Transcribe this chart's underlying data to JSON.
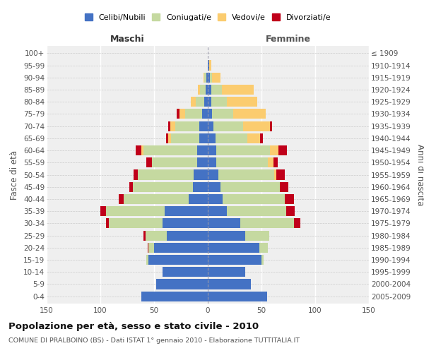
{
  "age_groups": [
    "0-4",
    "5-9",
    "10-14",
    "15-19",
    "20-24",
    "25-29",
    "30-34",
    "35-39",
    "40-44",
    "45-49",
    "50-54",
    "55-59",
    "60-64",
    "65-69",
    "70-74",
    "75-79",
    "80-84",
    "85-89",
    "90-94",
    "95-99",
    "100+"
  ],
  "birth_years": [
    "2005-2009",
    "2000-2004",
    "1995-1999",
    "1990-1994",
    "1985-1989",
    "1980-1984",
    "1975-1979",
    "1970-1974",
    "1965-1969",
    "1960-1964",
    "1955-1959",
    "1950-1954",
    "1945-1949",
    "1940-1944",
    "1935-1939",
    "1930-1934",
    "1925-1929",
    "1920-1924",
    "1915-1919",
    "1910-1914",
    "≤ 1909"
  ],
  "maschi": {
    "celibi": [
      62,
      48,
      42,
      55,
      50,
      38,
      42,
      40,
      18,
      14,
      13,
      10,
      10,
      8,
      8,
      5,
      3,
      2,
      1,
      0,
      0
    ],
    "coniugati": [
      0,
      0,
      0,
      2,
      5,
      20,
      50,
      55,
      60,
      56,
      52,
      42,
      50,
      26,
      22,
      16,
      8,
      5,
      2,
      0,
      0
    ],
    "vedovi": [
      0,
      0,
      0,
      0,
      0,
      0,
      0,
      0,
      0,
      0,
      0,
      0,
      2,
      3,
      5,
      5,
      5,
      2,
      1,
      0,
      0
    ],
    "divorziati": [
      0,
      0,
      0,
      0,
      1,
      2,
      3,
      5,
      5,
      3,
      4,
      5,
      5,
      2,
      2,
      3,
      0,
      0,
      0,
      0,
      0
    ]
  },
  "femmine": {
    "nubili": [
      55,
      40,
      35,
      50,
      48,
      35,
      30,
      18,
      14,
      12,
      10,
      8,
      8,
      7,
      5,
      4,
      3,
      3,
      2,
      1,
      0
    ],
    "coniugate": [
      0,
      0,
      0,
      2,
      8,
      22,
      50,
      55,
      58,
      55,
      52,
      48,
      50,
      30,
      28,
      20,
      15,
      10,
      2,
      0,
      0
    ],
    "vedove": [
      0,
      0,
      0,
      0,
      0,
      0,
      0,
      0,
      0,
      0,
      2,
      5,
      8,
      12,
      25,
      30,
      28,
      30,
      8,
      2,
      0
    ],
    "divorziate": [
      0,
      0,
      0,
      0,
      0,
      0,
      6,
      8,
      8,
      8,
      8,
      4,
      8,
      2,
      2,
      0,
      0,
      0,
      0,
      0,
      0
    ]
  },
  "colors": {
    "celibi": "#4472C4",
    "coniugati": "#C5D9A0",
    "vedovi": "#FBCC6F",
    "divorziati": "#C0001A"
  },
  "xlim": 150,
  "title": "Popolazione per età, sesso e stato civile - 2010",
  "subtitle": "COMUNE DI PRALBOINO (BS) - Dati ISTAT 1° gennaio 2010 - Elaborazione TUTTITALIA.IT",
  "ylabel_left": "Fasce di età",
  "ylabel_right": "Anni di nascita",
  "xlabel_maschi": "Maschi",
  "xlabel_femmine": "Femmine",
  "legend_labels": [
    "Celibi/Nubili",
    "Coniugati/e",
    "Vedovi/e",
    "Divorziati/e"
  ],
  "bg_color": "#FFFFFF",
  "plot_bg": "#EFEFEF"
}
